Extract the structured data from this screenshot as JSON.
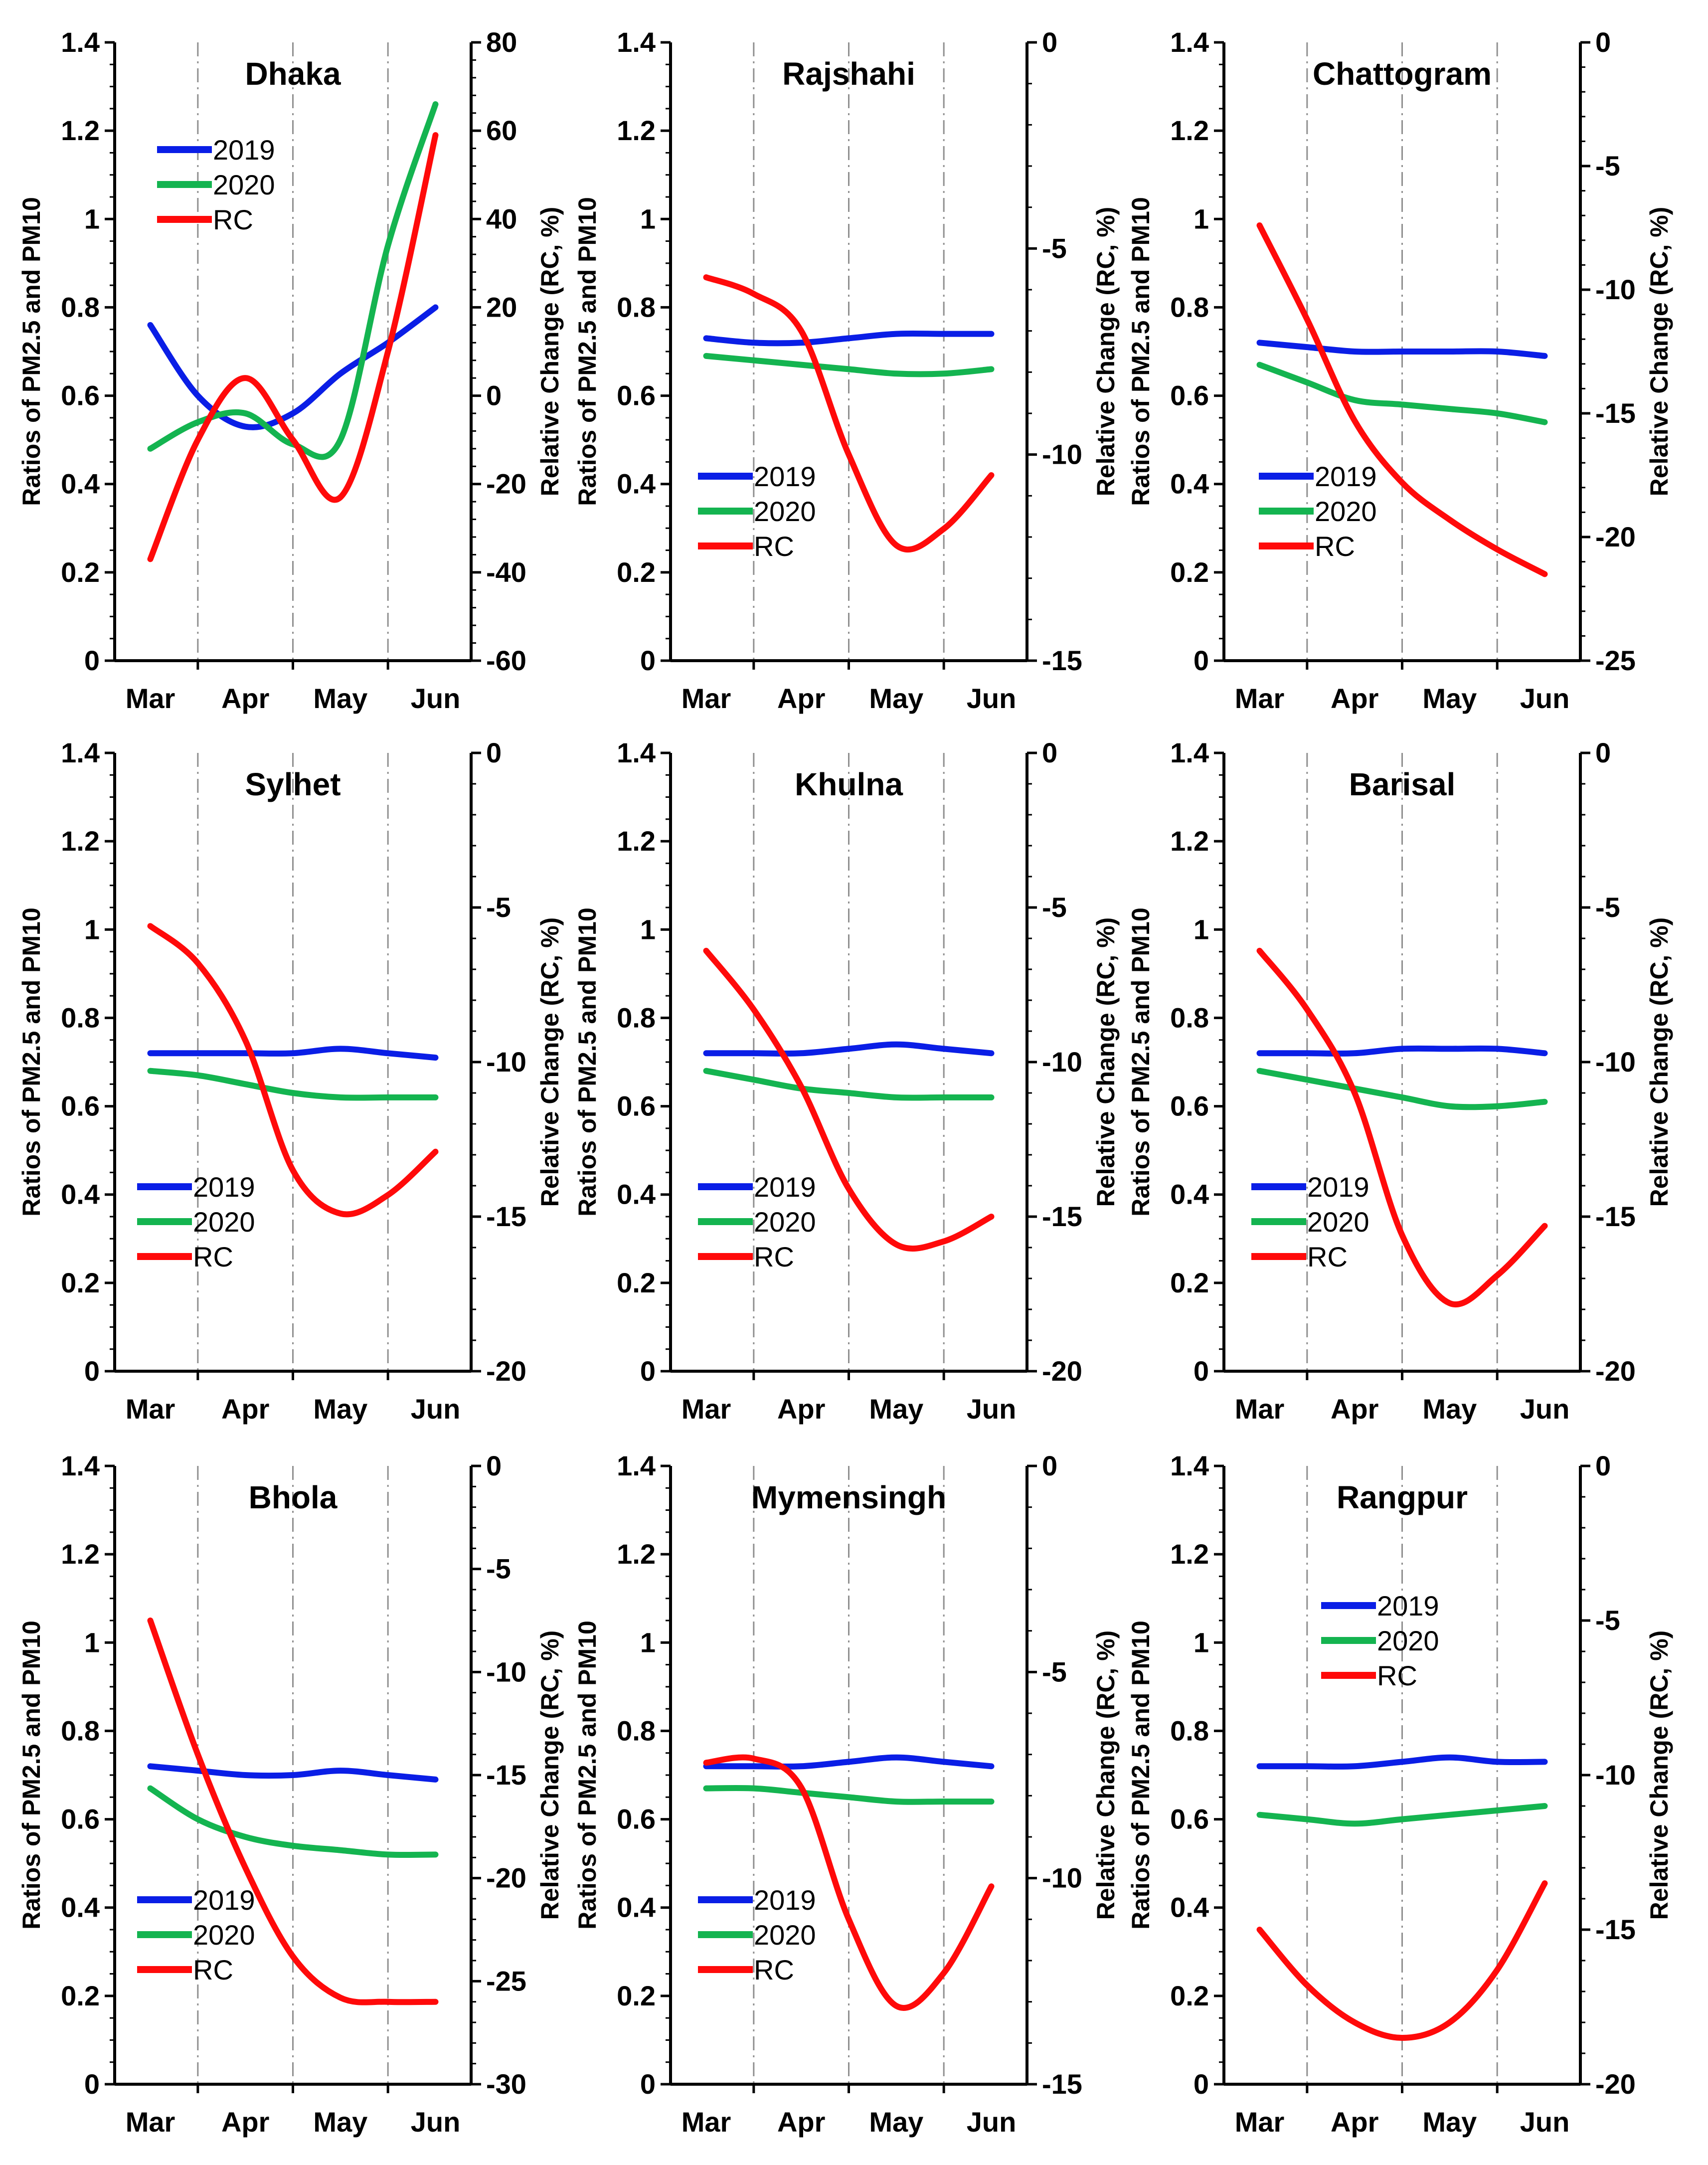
{
  "figure": {
    "left_axis_title": "Ratios of PM2.5 and PM10",
    "right_axis_title": "Relative Change (RC, %)"
  },
  "colors": {
    "2019": "#0a1ee6",
    "2020": "#14b450",
    "RC": "#ff0a0a",
    "grid": "#909090"
  },
  "chart_data": [
    {
      "type": "line",
      "title": "Dhaka",
      "categories": [
        "Mar",
        "Apr",
        "May",
        "Jun"
      ],
      "x": [
        0.0,
        0.5,
        1.0,
        1.5,
        2.0,
        2.5,
        3.0
      ],
      "ylim_left": [
        0,
        1.4
      ],
      "yticks_left": [
        0,
        0.2,
        0.4,
        0.6,
        0.8,
        1,
        1.2,
        1.4
      ],
      "ylim_right": [
        -60,
        80
      ],
      "yticks_right": [
        -60,
        -40,
        -20,
        0,
        20,
        40,
        60,
        80
      ],
      "series": [
        {
          "name": "2019",
          "axis": "left",
          "values": [
            0.76,
            0.6,
            0.53,
            0.56,
            0.65,
            0.72,
            0.8
          ]
        },
        {
          "name": "2020",
          "axis": "left",
          "values": [
            0.48,
            0.54,
            0.56,
            0.49,
            0.5,
            0.94,
            1.26
          ]
        },
        {
          "name": "RC",
          "axis": "right",
          "values": [
            -37,
            -10,
            4,
            -10,
            -23,
            10,
            59
          ]
        }
      ]
    },
    {
      "type": "line",
      "title": "Rajshahi",
      "categories": [
        "Mar",
        "Apr",
        "May",
        "Jun"
      ],
      "x": [
        0.0,
        0.5,
        1.0,
        1.5,
        2.0,
        2.5,
        3.0
      ],
      "ylim_left": [
        0,
        1.4
      ],
      "yticks_left": [
        0,
        0.2,
        0.4,
        0.6,
        0.8,
        1,
        1.2,
        1.4
      ],
      "ylim_right": [
        -15,
        0
      ],
      "yticks_right": [
        -15,
        -10,
        -5,
        0
      ],
      "series": [
        {
          "name": "2019",
          "axis": "left",
          "values": [
            0.73,
            0.72,
            0.72,
            0.73,
            0.74,
            0.74,
            0.74
          ]
        },
        {
          "name": "2020",
          "axis": "left",
          "values": [
            0.69,
            0.68,
            0.67,
            0.66,
            0.65,
            0.65,
            0.66
          ]
        },
        {
          "name": "RC",
          "axis": "right",
          "values": [
            -5.7,
            -6.1,
            -7.0,
            -10.0,
            -12.2,
            -11.8,
            -10.5
          ]
        }
      ]
    },
    {
      "type": "line",
      "title": "Chattogram",
      "categories": [
        "Mar",
        "Apr",
        "May",
        "Jun"
      ],
      "x": [
        0.0,
        0.5,
        1.0,
        1.5,
        2.0,
        2.5,
        3.0
      ],
      "ylim_left": [
        0,
        1.4
      ],
      "yticks_left": [
        0,
        0.2,
        0.4,
        0.6,
        0.8,
        1,
        1.2,
        1.4
      ],
      "ylim_right": [
        -25,
        0
      ],
      "yticks_right": [
        -25,
        -20,
        -15,
        -10,
        -5,
        0
      ],
      "series": [
        {
          "name": "2019",
          "axis": "left",
          "values": [
            0.72,
            0.71,
            0.7,
            0.7,
            0.7,
            0.7,
            0.69
          ]
        },
        {
          "name": "2020",
          "axis": "left",
          "values": [
            0.67,
            0.63,
            0.59,
            0.58,
            0.57,
            0.56,
            0.54
          ]
        },
        {
          "name": "RC",
          "axis": "right",
          "values": [
            -7.4,
            -11.2,
            -15.3,
            -17.8,
            -19.3,
            -20.5,
            -21.5
          ]
        }
      ]
    },
    {
      "type": "line",
      "title": "Sylhet",
      "categories": [
        "Mar",
        "Apr",
        "May",
        "Jun"
      ],
      "x": [
        0.0,
        0.5,
        1.0,
        1.5,
        2.0,
        2.5,
        3.0
      ],
      "ylim_left": [
        0,
        1.4
      ],
      "yticks_left": [
        0,
        0.2,
        0.4,
        0.6,
        0.8,
        1,
        1.2,
        1.4
      ],
      "ylim_right": [
        -20,
        0
      ],
      "yticks_right": [
        -20,
        -15,
        -10,
        -5,
        0
      ],
      "series": [
        {
          "name": "2019",
          "axis": "left",
          "values": [
            0.72,
            0.72,
            0.72,
            0.72,
            0.73,
            0.72,
            0.71
          ]
        },
        {
          "name": "2020",
          "axis": "left",
          "values": [
            0.68,
            0.67,
            0.65,
            0.63,
            0.62,
            0.62,
            0.62
          ]
        },
        {
          "name": "RC",
          "axis": "right",
          "values": [
            -5.6,
            -6.8,
            -9.3,
            -13.5,
            -14.9,
            -14.3,
            -12.9
          ]
        }
      ]
    },
    {
      "type": "line",
      "title": "Khulna",
      "categories": [
        "Mar",
        "Apr",
        "May",
        "Jun"
      ],
      "x": [
        0.0,
        0.5,
        1.0,
        1.5,
        2.0,
        2.5,
        3.0
      ],
      "ylim_left": [
        0,
        1.4
      ],
      "yticks_left": [
        0,
        0.2,
        0.4,
        0.6,
        0.8,
        1,
        1.2,
        1.4
      ],
      "ylim_right": [
        -20,
        0
      ],
      "yticks_right": [
        -20,
        -15,
        -10,
        -5,
        0
      ],
      "series": [
        {
          "name": "2019",
          "axis": "left",
          "values": [
            0.72,
            0.72,
            0.72,
            0.73,
            0.74,
            0.73,
            0.72
          ]
        },
        {
          "name": "2020",
          "axis": "left",
          "values": [
            0.68,
            0.66,
            0.64,
            0.63,
            0.62,
            0.62,
            0.62
          ]
        },
        {
          "name": "RC",
          "axis": "right",
          "values": [
            -6.4,
            -8.3,
            -10.8,
            -14.1,
            -15.9,
            -15.8,
            -15.0
          ]
        }
      ]
    },
    {
      "type": "line",
      "title": "Barisal",
      "categories": [
        "Mar",
        "Apr",
        "May",
        "Jun"
      ],
      "x": [
        0.0,
        0.5,
        1.0,
        1.5,
        2.0,
        2.5,
        3.0
      ],
      "ylim_left": [
        0,
        1.4
      ],
      "yticks_left": [
        0,
        0.2,
        0.4,
        0.6,
        0.8,
        1,
        1.2,
        1.4
      ],
      "ylim_right": [
        -20,
        0
      ],
      "yticks_right": [
        -20,
        -15,
        -10,
        -5,
        0
      ],
      "series": [
        {
          "name": "2019",
          "axis": "left",
          "values": [
            0.72,
            0.72,
            0.72,
            0.73,
            0.73,
            0.73,
            0.72
          ]
        },
        {
          "name": "2020",
          "axis": "left",
          "values": [
            0.68,
            0.66,
            0.64,
            0.62,
            0.6,
            0.6,
            0.61
          ]
        },
        {
          "name": "RC",
          "axis": "right",
          "values": [
            -6.4,
            -8.3,
            -11.0,
            -15.6,
            -17.8,
            -16.9,
            -15.3
          ]
        }
      ]
    },
    {
      "type": "line",
      "title": "Bhola",
      "categories": [
        "Mar",
        "Apr",
        "May",
        "Jun"
      ],
      "x": [
        0.0,
        0.5,
        1.0,
        1.5,
        2.0,
        2.5,
        3.0
      ],
      "ylim_left": [
        0,
        1.4
      ],
      "yticks_left": [
        0,
        0.2,
        0.4,
        0.6,
        0.8,
        1,
        1.2,
        1.4
      ],
      "ylim_right": [
        -30,
        0
      ],
      "yticks_right": [
        -30,
        -25,
        -20,
        -15,
        -10,
        -5,
        0
      ],
      "series": [
        {
          "name": "2019",
          "axis": "left",
          "values": [
            0.72,
            0.71,
            0.7,
            0.7,
            0.71,
            0.7,
            0.69
          ]
        },
        {
          "name": "2020",
          "axis": "left",
          "values": [
            0.67,
            0.6,
            0.56,
            0.54,
            0.53,
            0.52,
            0.52
          ]
        },
        {
          "name": "RC",
          "axis": "right",
          "values": [
            -7.5,
            -14.0,
            -19.5,
            -23.8,
            -25.8,
            -26.0,
            -26.0
          ]
        }
      ]
    },
    {
      "type": "line",
      "title": "Mymensingh",
      "categories": [
        "Mar",
        "Apr",
        "May",
        "Jun"
      ],
      "x": [
        0.0,
        0.5,
        1.0,
        1.5,
        2.0,
        2.5,
        3.0
      ],
      "ylim_left": [
        0,
        1.4
      ],
      "yticks_left": [
        0,
        0.2,
        0.4,
        0.6,
        0.8,
        1,
        1.2,
        1.4
      ],
      "ylim_right": [
        -15,
        0
      ],
      "yticks_right": [
        -15,
        -10,
        -5,
        0
      ],
      "series": [
        {
          "name": "2019",
          "axis": "left",
          "values": [
            0.72,
            0.72,
            0.72,
            0.73,
            0.74,
            0.73,
            0.72
          ]
        },
        {
          "name": "2020",
          "axis": "left",
          "values": [
            0.67,
            0.67,
            0.66,
            0.65,
            0.64,
            0.64,
            0.64
          ]
        },
        {
          "name": "RC",
          "axis": "right",
          "values": [
            -7.2,
            -7.1,
            -7.8,
            -11.0,
            -13.1,
            -12.3,
            -10.2
          ]
        }
      ]
    },
    {
      "type": "line",
      "title": "Rangpur",
      "categories": [
        "Mar",
        "Apr",
        "May",
        "Jun"
      ],
      "x": [
        0.0,
        0.5,
        1.0,
        1.5,
        2.0,
        2.5,
        3.0
      ],
      "ylim_left": [
        0,
        1.4
      ],
      "yticks_left": [
        0,
        0.2,
        0.4,
        0.6,
        0.8,
        1,
        1.2,
        1.4
      ],
      "ylim_right": [
        -20,
        0
      ],
      "yticks_right": [
        -20,
        -15,
        -10,
        -5,
        0
      ],
      "series": [
        {
          "name": "2019",
          "axis": "left",
          "values": [
            0.72,
            0.72,
            0.72,
            0.73,
            0.74,
            0.73,
            0.73
          ]
        },
        {
          "name": "2020",
          "axis": "left",
          "values": [
            0.61,
            0.6,
            0.59,
            0.6,
            0.61,
            0.62,
            0.63
          ]
        },
        {
          "name": "RC",
          "axis": "right",
          "values": [
            -15.0,
            -16.8,
            -18.0,
            -18.5,
            -18.0,
            -16.3,
            -13.5
          ]
        }
      ]
    }
  ]
}
